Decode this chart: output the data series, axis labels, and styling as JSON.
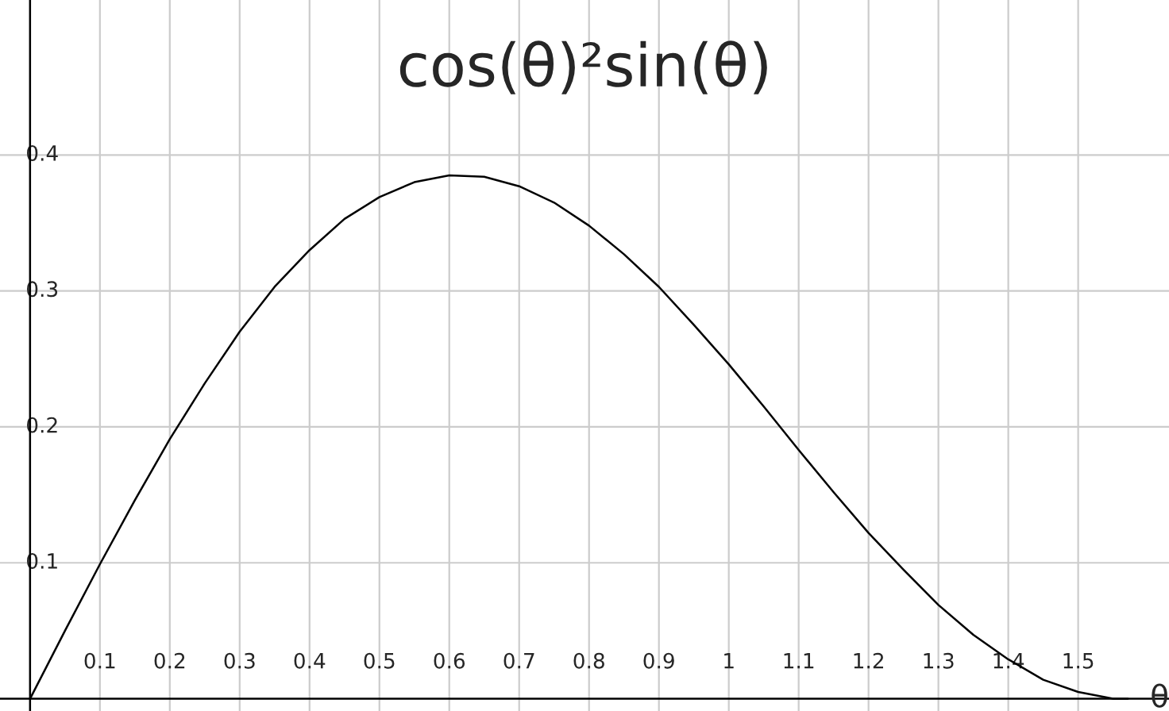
{
  "chart_data": {
    "type": "line",
    "title": "cos(θ)²sin(θ)",
    "xlabel": "θ",
    "x": [
      0,
      0.05,
      0.1,
      0.15,
      0.2,
      0.25,
      0.3,
      0.35,
      0.4,
      0.45,
      0.5,
      0.55,
      0.6,
      0.65,
      0.7,
      0.75,
      0.8,
      0.85,
      0.9,
      0.95,
      1.0,
      1.05,
      1.1,
      1.15,
      1.2,
      1.25,
      1.3,
      1.35,
      1.4,
      1.45,
      1.5,
      1.55,
      1.571
    ],
    "series": [
      {
        "color": "#000000",
        "values": [
          0,
          0.05,
          0.099,
          0.146,
          0.191,
          0.232,
          0.27,
          0.303,
          0.33,
          0.353,
          0.369,
          0.38,
          0.385,
          0.384,
          0.377,
          0.365,
          0.348,
          0.327,
          0.303,
          0.275,
          0.246,
          0.215,
          0.183,
          0.152,
          0.122,
          0.095,
          0.069,
          0.047,
          0.029,
          0.014,
          0.005,
          0.0,
          0
        ]
      }
    ],
    "xlim": [
      -0.043,
      1.63
    ],
    "ylim": [
      -0.009,
      0.514
    ],
    "xticks": [
      0.1,
      0.2,
      0.3,
      0.4,
      0.5,
      0.6,
      0.7,
      0.8,
      0.9,
      1,
      1.1,
      1.2,
      1.3,
      1.4,
      1.5
    ],
    "yticks": [
      0.1,
      0.2,
      0.3,
      0.4
    ],
    "grid": true,
    "legend": false,
    "marker": "none",
    "line_style": "solid"
  }
}
